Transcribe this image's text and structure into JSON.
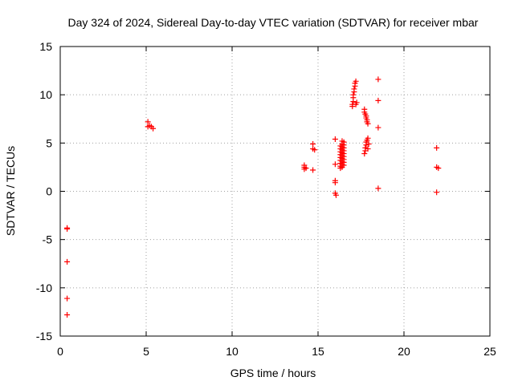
{
  "chart_data": {
    "type": "scatter",
    "title": "Day 324 of 2024, Sidereal Day-to-day VTEC variation (SDTVAR) for receiver mbar",
    "xlabel": "GPS time / hours",
    "ylabel": "SDTVAR / TECUs",
    "xlim": [
      0,
      25
    ],
    "ylim": [
      -15,
      15
    ],
    "xticks": [
      0,
      5,
      10,
      15,
      20,
      25
    ],
    "yticks": [
      -15,
      -10,
      -5,
      0,
      5,
      10,
      15
    ],
    "grid": true,
    "marker": "plus",
    "color": "#ff0000",
    "points": [
      [
        0.4,
        -3.8
      ],
      [
        0.4,
        -3.9
      ],
      [
        0.4,
        -7.3
      ],
      [
        0.4,
        -11.1
      ],
      [
        0.4,
        -12.8
      ],
      [
        5.1,
        7.2
      ],
      [
        5.1,
        6.7
      ],
      [
        5.2,
        6.8
      ],
      [
        5.3,
        6.7
      ],
      [
        5.4,
        6.5
      ],
      [
        14.2,
        2.7
      ],
      [
        14.2,
        2.5
      ],
      [
        14.2,
        2.3
      ],
      [
        14.3,
        2.4
      ],
      [
        14.7,
        4.9
      ],
      [
        14.7,
        4.4
      ],
      [
        14.8,
        4.3
      ],
      [
        14.7,
        2.2
      ],
      [
        16.0,
        5.4
      ],
      [
        16.0,
        2.8
      ],
      [
        16.0,
        1.1
      ],
      [
        16.0,
        0.9
      ],
      [
        16.0,
        -0.2
      ],
      [
        16.05,
        -0.4
      ],
      [
        16.3,
        2.4
      ],
      [
        16.3,
        2.6
      ],
      [
        16.3,
        2.9
      ],
      [
        16.3,
        3.2
      ],
      [
        16.3,
        3.5
      ],
      [
        16.3,
        3.8
      ],
      [
        16.3,
        4.1
      ],
      [
        16.3,
        4.4
      ],
      [
        16.3,
        4.7
      ],
      [
        16.4,
        2.5
      ],
      [
        16.4,
        2.8
      ],
      [
        16.4,
        3.1
      ],
      [
        16.4,
        3.4
      ],
      [
        16.4,
        3.7
      ],
      [
        16.4,
        4.0
      ],
      [
        16.4,
        4.3
      ],
      [
        16.4,
        4.6
      ],
      [
        16.4,
        4.9
      ],
      [
        16.4,
        5.2
      ],
      [
        16.5,
        2.7
      ],
      [
        16.5,
        3.0
      ],
      [
        16.5,
        3.3
      ],
      [
        16.5,
        3.6
      ],
      [
        16.5,
        3.9
      ],
      [
        16.5,
        4.2
      ],
      [
        16.5,
        4.5
      ],
      [
        16.5,
        4.8
      ],
      [
        16.5,
        5.1
      ],
      [
        17.0,
        8.8
      ],
      [
        17.0,
        9.0
      ],
      [
        17.05,
        9.3
      ],
      [
        17.05,
        9.7
      ],
      [
        17.05,
        10.0
      ],
      [
        17.1,
        10.3
      ],
      [
        17.1,
        10.6
      ],
      [
        17.15,
        10.9
      ],
      [
        17.15,
        11.2
      ],
      [
        17.2,
        11.4
      ],
      [
        17.2,
        9.0
      ],
      [
        17.25,
        9.2
      ],
      [
        17.7,
        8.5
      ],
      [
        17.7,
        8.2
      ],
      [
        17.75,
        8.0
      ],
      [
        17.8,
        7.8
      ],
      [
        17.8,
        7.6
      ],
      [
        17.85,
        7.4
      ],
      [
        17.85,
        7.2
      ],
      [
        17.9,
        7.0
      ],
      [
        17.7,
        3.9
      ],
      [
        17.75,
        4.2
      ],
      [
        17.75,
        4.5
      ],
      [
        17.8,
        4.8
      ],
      [
        17.8,
        5.1
      ],
      [
        17.85,
        5.3
      ],
      [
        17.9,
        5.5
      ],
      [
        17.9,
        4.4
      ],
      [
        17.95,
        4.9
      ],
      [
        18.5,
        11.6
      ],
      [
        18.5,
        9.4
      ],
      [
        18.5,
        6.6
      ],
      [
        18.5,
        0.3
      ],
      [
        21.9,
        4.5
      ],
      [
        21.9,
        2.5
      ],
      [
        22.0,
        2.4
      ],
      [
        21.9,
        -0.1
      ]
    ]
  }
}
